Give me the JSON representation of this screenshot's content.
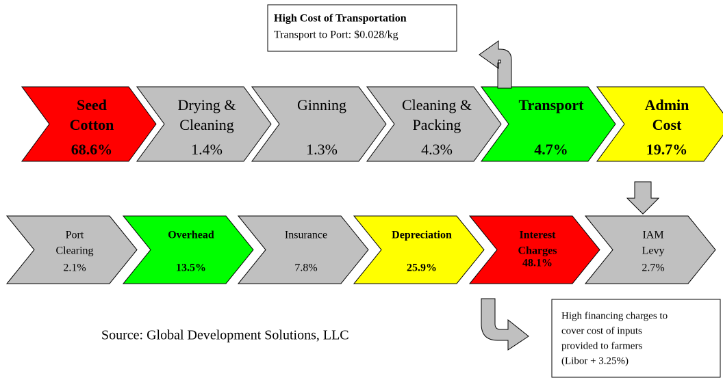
{
  "callout_top": {
    "title": "High Cost of Transportation",
    "text": "Transport to Port:  $0.028/kg"
  },
  "row1": [
    {
      "lines": [
        "Seed",
        "Cotton"
      ],
      "value": "68.6%",
      "color": "#ff0000",
      "bold": true
    },
    {
      "lines": [
        "Drying &",
        "Cleaning"
      ],
      "value": "1.4%",
      "color": "#c0c0c0",
      "bold": false
    },
    {
      "lines": [
        "Ginning"
      ],
      "value": "1.3%",
      "color": "#c0c0c0",
      "bold": false
    },
    {
      "lines": [
        "Cleaning &",
        "Packing"
      ],
      "value": "4.3%",
      "color": "#c0c0c0",
      "bold": false
    },
    {
      "lines": [
        "Transport"
      ],
      "value": "4.7%",
      "color": "#00ff00",
      "bold": true
    },
    {
      "lines": [
        "Admin",
        "Cost"
      ],
      "value": "19.7%",
      "color": "#ffff00",
      "bold": true
    }
  ],
  "row2": [
    {
      "lines": [
        "Port",
        "Clearing"
      ],
      "value": "2.1%",
      "color": "#c0c0c0",
      "bold": false
    },
    {
      "lines": [
        "Overhead"
      ],
      "value": "13.5%",
      "color": "#00ff00",
      "bold": true
    },
    {
      "lines": [
        "Insurance"
      ],
      "value": "7.8%",
      "color": "#c0c0c0",
      "bold": false
    },
    {
      "lines": [
        "Depreciation"
      ],
      "value": "25.9%",
      "color": "#ffff00",
      "bold": true
    },
    {
      "lines": [
        "Interest",
        "Charges"
      ],
      "value": "48.1%",
      "color": "#ff0000",
      "bold": true
    },
    {
      "lines": [
        "IAM",
        "Levy"
      ],
      "value": "2.7%",
      "color": "#c0c0c0",
      "bold": false
    }
  ],
  "callout_bottom": {
    "lines": [
      "High financing charges to",
      "cover cost of inputs",
      "provided to farmers",
      "(Libor + 3.25%)"
    ]
  },
  "source": "Source:  Global Development Solutions, LLC"
}
